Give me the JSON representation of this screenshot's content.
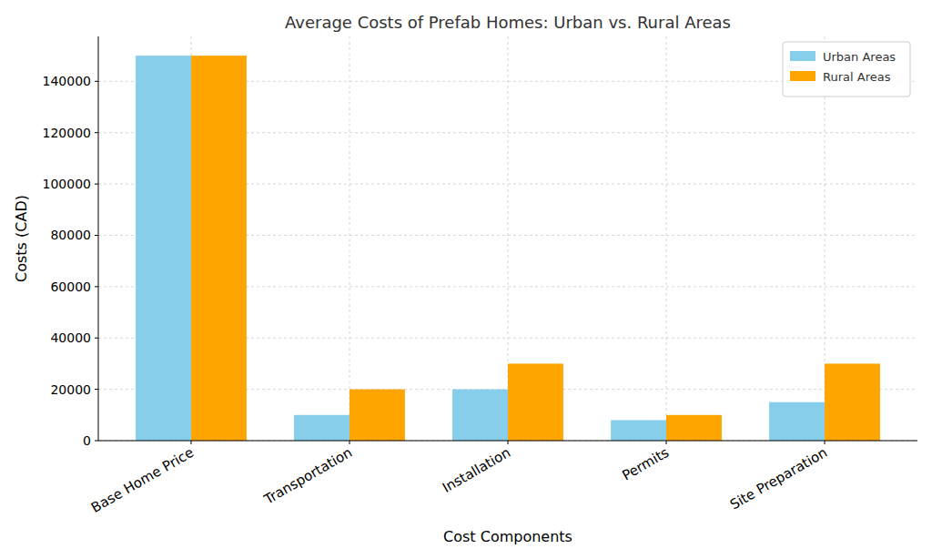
{
  "chart_data": {
    "type": "bar",
    "title": "Average Costs of Prefab Homes: Urban vs. Rural Areas",
    "x_label": "Cost Components",
    "y_label": "Costs (CAD)",
    "categories": [
      "Base Home Price",
      "Transportation",
      "Installation",
      "Permits",
      "Site Preparation"
    ],
    "series": [
      {
        "name": "Urban Areas",
        "color": "#87ceeb",
        "values": [
          150000,
          10000,
          20000,
          8000,
          15000
        ]
      },
      {
        "name": "Rural Areas",
        "color": "#ffa500",
        "values": [
          150000,
          20000,
          30000,
          10000,
          30000
        ]
      }
    ],
    "ylim": [
      0,
      157500
    ],
    "yticks": [
      0,
      20000,
      40000,
      60000,
      80000,
      100000,
      120000,
      140000
    ],
    "grid": true,
    "legend": "upper right"
  }
}
